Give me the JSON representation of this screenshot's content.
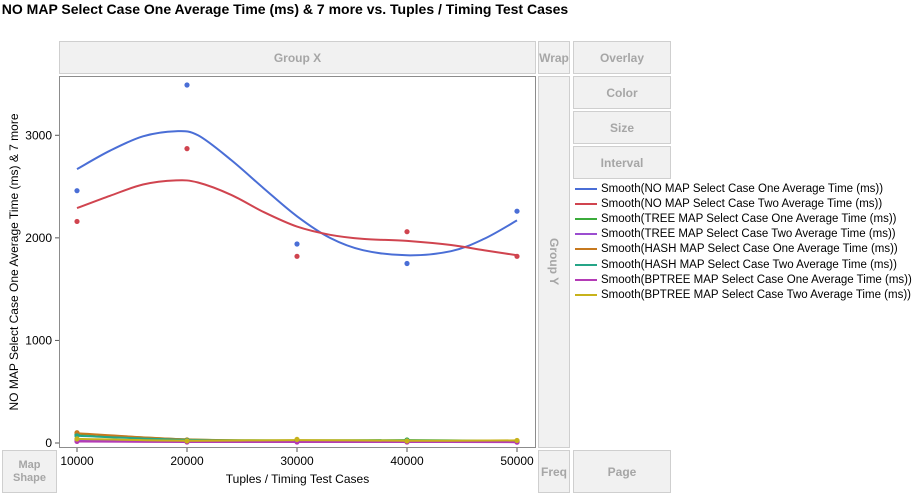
{
  "title": "NO MAP Select Case One Average Time (ms)  & 7 more vs. Tuples / Timing Test Cases",
  "zones": {
    "group_x": "Group X",
    "wrap": "Wrap",
    "overlay": "Overlay",
    "color": "Color",
    "size": "Size",
    "interval": "Interval",
    "group_y": "Group Y",
    "map_shape": "Map Shape",
    "freq": "Freq",
    "page": "Page"
  },
  "chart_data": {
    "type": "scatter",
    "xlabel": "Tuples / Timing Test Cases",
    "ylabel": "NO MAP Select Case One Average Time (ms)  & 7 more",
    "xlim": [
      10000,
      50000
    ],
    "ylim": [
      0,
      3500
    ],
    "xticks": [
      10000,
      20000,
      30000,
      40000,
      50000
    ],
    "yticks": [
      0,
      1000,
      2000,
      3000
    ],
    "x": [
      10000,
      20000,
      30000,
      40000,
      50000
    ],
    "series": [
      {
        "name": "Smooth(NO MAP Select Case One Average Time (ms))",
        "color": "#4a6ed6",
        "points": [
          [
            10000,
            2460
          ],
          [
            20000,
            3490
          ],
          [
            30000,
            1940
          ],
          [
            40000,
            1750
          ],
          [
            50000,
            2260
          ]
        ],
        "smooth": [
          [
            10000,
            2670
          ],
          [
            13000,
            2850
          ],
          [
            16000,
            2990
          ],
          [
            19000,
            3040
          ],
          [
            21000,
            3000
          ],
          [
            24000,
            2760
          ],
          [
            27000,
            2480
          ],
          [
            30000,
            2210
          ],
          [
            33000,
            2000
          ],
          [
            36000,
            1880
          ],
          [
            40000,
            1830
          ],
          [
            44000,
            1870
          ],
          [
            47000,
            1990
          ],
          [
            50000,
            2170
          ]
        ]
      },
      {
        "name": "Smooth(NO MAP Select Case Two Average Time (ms))",
        "color": "#d0444f",
        "points": [
          [
            10000,
            2160
          ],
          [
            20000,
            2870
          ],
          [
            30000,
            1820
          ],
          [
            40000,
            2060
          ],
          [
            50000,
            1820
          ]
        ],
        "smooth": [
          [
            10000,
            2290
          ],
          [
            13000,
            2410
          ],
          [
            16000,
            2520
          ],
          [
            19000,
            2560
          ],
          [
            21000,
            2540
          ],
          [
            24000,
            2420
          ],
          [
            27000,
            2250
          ],
          [
            30000,
            2110
          ],
          [
            33000,
            2030
          ],
          [
            36000,
            1990
          ],
          [
            40000,
            1970
          ],
          [
            44000,
            1930
          ],
          [
            47000,
            1880
          ],
          [
            50000,
            1830
          ]
        ]
      },
      {
        "name": "Smooth(TREE MAP Select Case One Average Time (ms))",
        "color": "#3bab3b",
        "points": [
          [
            10000,
            85
          ],
          [
            20000,
            30
          ],
          [
            30000,
            25
          ],
          [
            40000,
            30
          ],
          [
            50000,
            20
          ]
        ],
        "smooth": [
          [
            10000,
            90
          ],
          [
            20000,
            35
          ],
          [
            30000,
            25
          ],
          [
            40000,
            28
          ],
          [
            50000,
            20
          ]
        ]
      },
      {
        "name": "Smooth(TREE MAP Select Case Two Average Time (ms))",
        "color": "#9b4dd0",
        "points": [
          [
            10000,
            30
          ],
          [
            20000,
            15
          ],
          [
            30000,
            15
          ],
          [
            40000,
            12
          ],
          [
            50000,
            10
          ]
        ],
        "smooth": [
          [
            10000,
            25
          ],
          [
            20000,
            18
          ],
          [
            30000,
            15
          ],
          [
            40000,
            12
          ],
          [
            50000,
            10
          ]
        ]
      },
      {
        "name": "Smooth(HASH MAP Select Case One Average Time (ms))",
        "color": "#c6791f",
        "points": [
          [
            10000,
            100
          ],
          [
            20000,
            30
          ],
          [
            30000,
            20
          ],
          [
            40000,
            20
          ],
          [
            50000,
            15
          ]
        ],
        "smooth": [
          [
            10000,
            95
          ],
          [
            20000,
            35
          ],
          [
            30000,
            22
          ],
          [
            40000,
            20
          ],
          [
            50000,
            15
          ]
        ]
      },
      {
        "name": "Smooth(HASH MAP Select Case Two Average Time (ms))",
        "color": "#25a587",
        "points": [
          [
            10000,
            70
          ],
          [
            20000,
            25
          ],
          [
            30000,
            20
          ],
          [
            40000,
            25
          ],
          [
            50000,
            15
          ]
        ],
        "smooth": [
          [
            10000,
            70
          ],
          [
            20000,
            30
          ],
          [
            30000,
            22
          ],
          [
            40000,
            22
          ],
          [
            50000,
            15
          ]
        ]
      },
      {
        "name": "Smooth(BPTREE MAP Select Case One Average Time (ms))",
        "color": "#b43bb6",
        "points": [
          [
            10000,
            15
          ],
          [
            20000,
            10
          ],
          [
            30000,
            10
          ],
          [
            40000,
            10
          ],
          [
            50000,
            8
          ]
        ],
        "smooth": [
          [
            10000,
            15
          ],
          [
            20000,
            10
          ],
          [
            30000,
            10
          ],
          [
            40000,
            10
          ],
          [
            50000,
            8
          ]
        ]
      },
      {
        "name": "Smooth(BPTREE MAP Select Case Two Average Time (ms))",
        "color": "#c7b21b",
        "points": [
          [
            10000,
            40
          ],
          [
            20000,
            20
          ],
          [
            30000,
            35
          ],
          [
            40000,
            20
          ],
          [
            50000,
            25
          ]
        ],
        "smooth": [
          [
            10000,
            40
          ],
          [
            20000,
            22
          ],
          [
            30000,
            28
          ],
          [
            40000,
            22
          ],
          [
            50000,
            25
          ]
        ]
      }
    ]
  }
}
